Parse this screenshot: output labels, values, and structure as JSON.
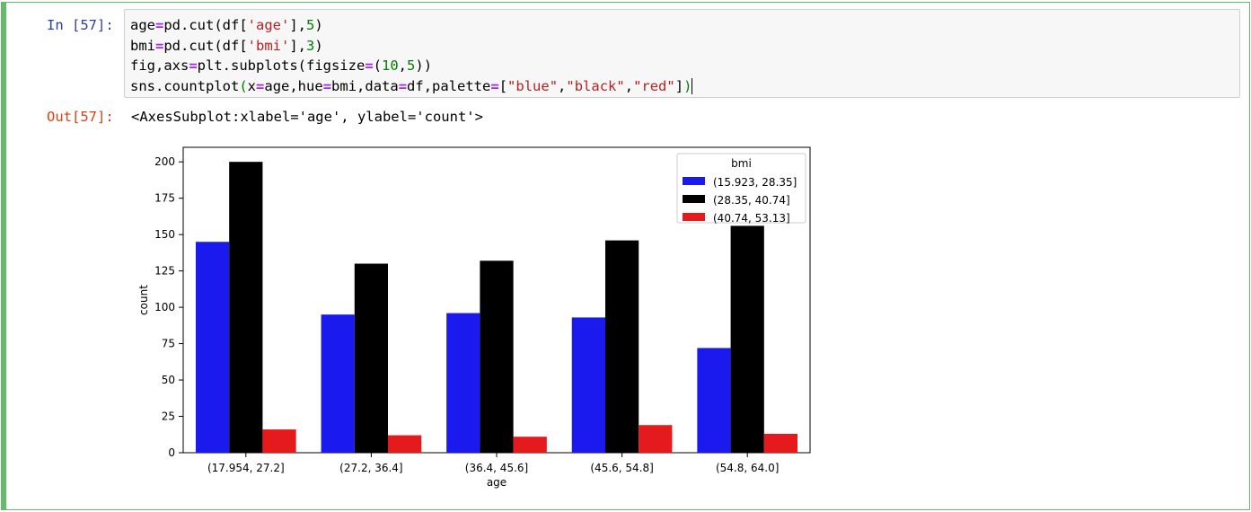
{
  "cell": {
    "in_prompt": "In [57]:",
    "out_prompt": "Out[57]:",
    "code_lines": [
      [
        {
          "t": "age"
        },
        {
          "t": "=",
          "c": "op"
        },
        {
          "t": "pd.cut(df["
        },
        {
          "t": "'age'",
          "c": "str"
        },
        {
          "t": "],"
        },
        {
          "t": "5",
          "c": "num"
        },
        {
          "t": ")"
        }
      ],
      [
        {
          "t": "bmi"
        },
        {
          "t": "=",
          "c": "op"
        },
        {
          "t": "pd.cut(df["
        },
        {
          "t": "'bmi'",
          "c": "str"
        },
        {
          "t": "],"
        },
        {
          "t": "3",
          "c": "num"
        },
        {
          "t": ")"
        }
      ],
      [
        {
          "t": "fig,axs"
        },
        {
          "t": "=",
          "c": "op"
        },
        {
          "t": "plt.subplots(figsize"
        },
        {
          "t": "=",
          "c": "op"
        },
        {
          "t": "("
        },
        {
          "t": "10",
          "c": "num"
        },
        {
          "t": ","
        },
        {
          "t": "5",
          "c": "num"
        },
        {
          "t": "))"
        }
      ],
      [
        {
          "t": "sns.countplot"
        },
        {
          "t": "(",
          "c": "paren"
        },
        {
          "t": "x"
        },
        {
          "t": "=",
          "c": "op"
        },
        {
          "t": "age,hue"
        },
        {
          "t": "=",
          "c": "op"
        },
        {
          "t": "bmi,data"
        },
        {
          "t": "=",
          "c": "op"
        },
        {
          "t": "df,palette"
        },
        {
          "t": "=",
          "c": "op"
        },
        {
          "t": "["
        },
        {
          "t": "\"blue\"",
          "c": "str"
        },
        {
          "t": ","
        },
        {
          "t": "\"black\"",
          "c": "str"
        },
        {
          "t": ","
        },
        {
          "t": "\"red\"",
          "c": "str"
        },
        {
          "t": "]"
        },
        {
          "t": ")",
          "c": "paren"
        }
      ]
    ],
    "output_text": "<AxesSubplot:xlabel='age', ylabel='count'>"
  },
  "chart_data": {
    "type": "bar",
    "categories": [
      "(17.954, 27.2]",
      "(27.2, 36.4]",
      "(36.4, 45.6]",
      "(45.6, 54.8]",
      "(54.8, 64.0]"
    ],
    "series": [
      {
        "name": "(15.923, 28.35]",
        "color": "#1a1aee",
        "values": [
          145,
          95,
          96,
          93,
          72
        ]
      },
      {
        "name": "(28.35, 40.74]",
        "color": "#000000",
        "values": [
          200,
          130,
          132,
          146,
          156
        ]
      },
      {
        "name": "(40.74, 53.13]",
        "color": "#e41a1c",
        "values": [
          16,
          12,
          11,
          19,
          13
        ]
      }
    ],
    "xlabel": "age",
    "ylabel": "count",
    "yticks": [
      0,
      25,
      50,
      75,
      100,
      125,
      150,
      175,
      200
    ],
    "ylim": [
      0,
      210
    ],
    "legend_title": "bmi",
    "legend_position": "top-right",
    "grid": false
  }
}
